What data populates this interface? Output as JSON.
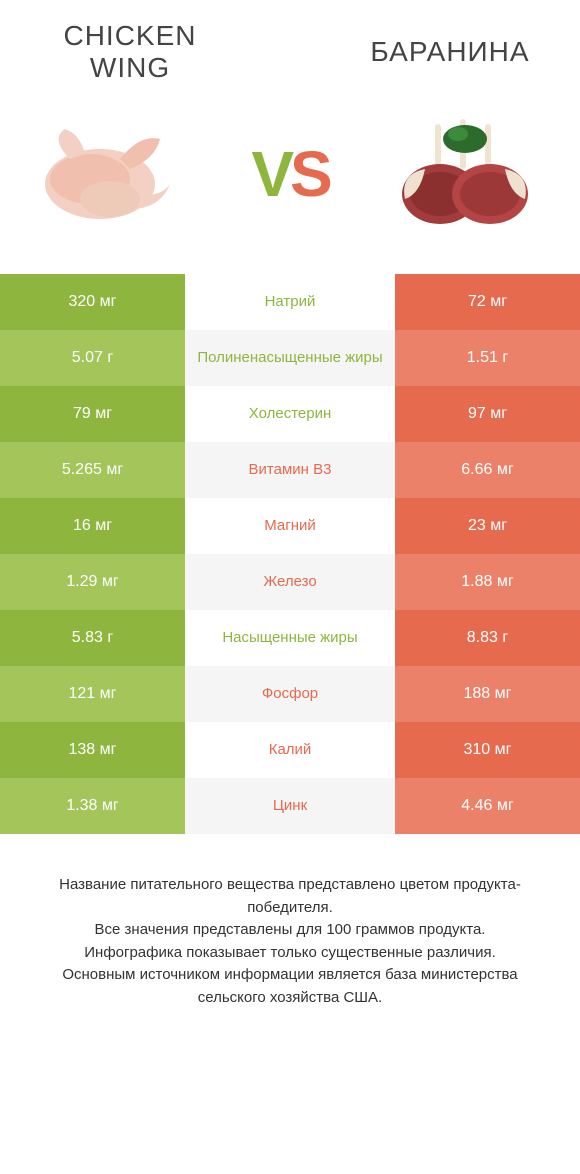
{
  "colors": {
    "green_dark": "#8eb63f",
    "green_light": "#a3c55a",
    "orange_dark": "#e66a4e",
    "orange_light": "#eb8169",
    "mid_bg_a": "#ffffff",
    "mid_bg_b": "#f5f5f5",
    "text_green": "#8eb63f",
    "text_orange": "#e66a4e"
  },
  "header": {
    "left_title": "Chicken wing",
    "right_title": "Баранина",
    "vs_v": "V",
    "vs_s": "S"
  },
  "rows": [
    {
      "left": "320 мг",
      "mid": "Натрий",
      "right": "72 мг",
      "winner": "left"
    },
    {
      "left": "5.07 г",
      "mid": "Полиненасыщенные жиры",
      "right": "1.51 г",
      "winner": "left"
    },
    {
      "left": "79 мг",
      "mid": "Холестерин",
      "right": "97 мг",
      "winner": "left"
    },
    {
      "left": "5.265 мг",
      "mid": "Витамин B3",
      "right": "6.66 мг",
      "winner": "right"
    },
    {
      "left": "16 мг",
      "mid": "Магний",
      "right": "23 мг",
      "winner": "right"
    },
    {
      "left": "1.29 мг",
      "mid": "Железо",
      "right": "1.88 мг",
      "winner": "right"
    },
    {
      "left": "5.83 г",
      "mid": "Насыщенные жиры",
      "right": "8.83 г",
      "winner": "left"
    },
    {
      "left": "121 мг",
      "mid": "Фосфор",
      "right": "188 мг",
      "winner": "right"
    },
    {
      "left": "138 мг",
      "mid": "Калий",
      "right": "310 мг",
      "winner": "right"
    },
    {
      "left": "1.38 мг",
      "mid": "Цинк",
      "right": "4.46 мг",
      "winner": "right"
    }
  ],
  "footer": {
    "line1": "Название питательного вещества представлено цветом продукта-победителя.",
    "line2": "Все значения представлены для 100 граммов продукта.",
    "line3": "Инфографика показывает только существенные различия.",
    "line4": "Основным источником информации является база министерства сельского хозяйства США."
  }
}
